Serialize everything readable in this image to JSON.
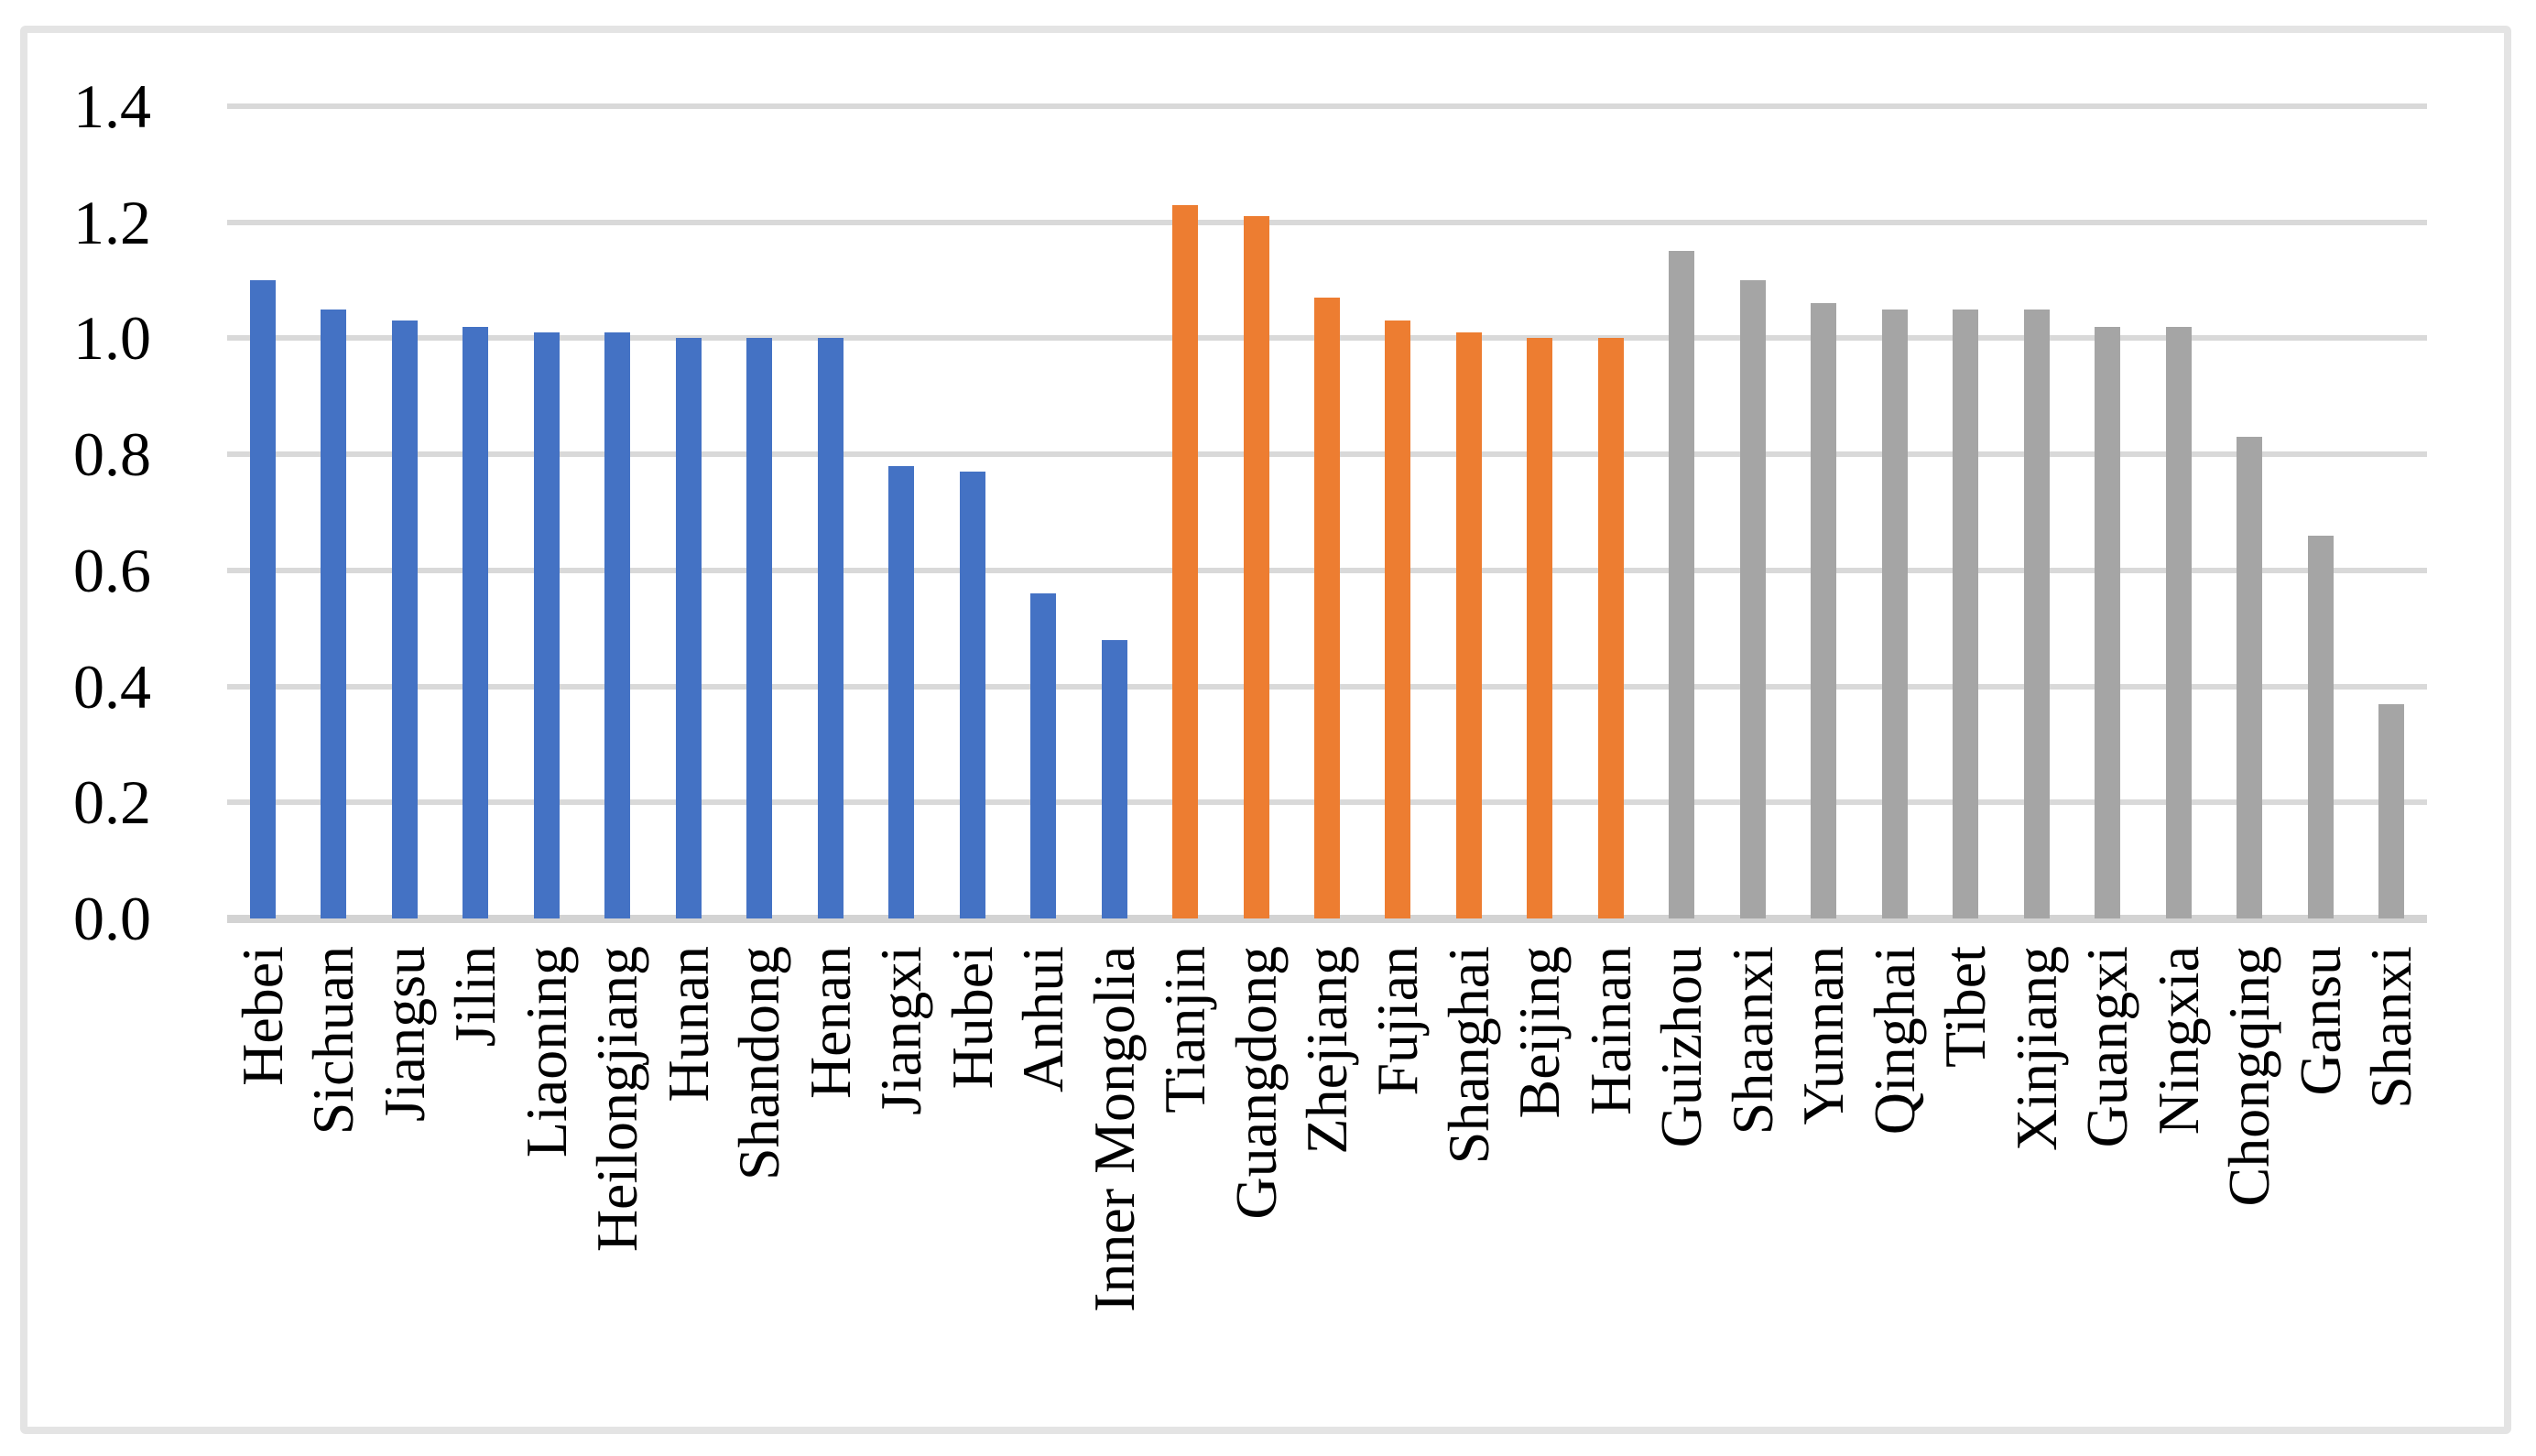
{
  "figure": {
    "title": "",
    "background_color": "#ffffff",
    "frame_color": "#e4e4e4"
  },
  "chart_data": {
    "type": "bar",
    "title": "",
    "xlabel": "",
    "ylabel": "",
    "ylim": [
      0,
      1.4
    ],
    "ytick_labels": [
      "0.0",
      "0.2",
      "0.4",
      "0.6",
      "0.8",
      "1.0",
      "1.2",
      "1.4"
    ],
    "yticks": [
      0.0,
      0.2,
      0.4,
      0.6,
      0.8,
      1.0,
      1.2,
      1.4
    ],
    "grid": true,
    "legend": "none",
    "gridline_color": "#d9d9d9",
    "axis_line_color": "#d3d3d3",
    "group_colors": {
      "blue": "#4472C4",
      "orange": "#ED7D31",
      "gray": "#A5A5A5"
    },
    "categories": [
      "Hebei",
      "Sichuan",
      "Jiangsu",
      "Jilin",
      "Liaoning",
      "Heilongjiang",
      "Hunan",
      "Shandong",
      "Henan",
      "Jiangxi",
      "Hubei",
      "Anhui",
      "Inner Mongolia",
      "Tianjin",
      "Guangdong",
      "Zhejiang",
      "Fujian",
      "Shanghai",
      "Beijing",
      "Hainan",
      "Guizhou",
      "Shaanxi",
      "Yunnan",
      "Qinghai",
      "Tibet",
      "Xinjiang",
      "Guangxi",
      "Ningxia",
      "Chongqing",
      "Gansu",
      "Shanxi"
    ],
    "groups": [
      "blue",
      "blue",
      "blue",
      "blue",
      "blue",
      "blue",
      "blue",
      "blue",
      "blue",
      "blue",
      "blue",
      "blue",
      "blue",
      "orange",
      "orange",
      "orange",
      "orange",
      "orange",
      "orange",
      "orange",
      "gray",
      "gray",
      "gray",
      "gray",
      "gray",
      "gray",
      "gray",
      "gray",
      "gray",
      "gray",
      "gray"
    ],
    "values": [
      1.1,
      1.05,
      1.03,
      1.02,
      1.01,
      1.01,
      1.0,
      1.0,
      1.0,
      0.78,
      0.77,
      0.56,
      0.48,
      1.23,
      1.21,
      1.07,
      1.03,
      1.01,
      1.0,
      1.0,
      1.15,
      1.1,
      1.06,
      1.05,
      1.05,
      1.05,
      1.02,
      1.02,
      0.83,
      0.66,
      0.37
    ]
  }
}
